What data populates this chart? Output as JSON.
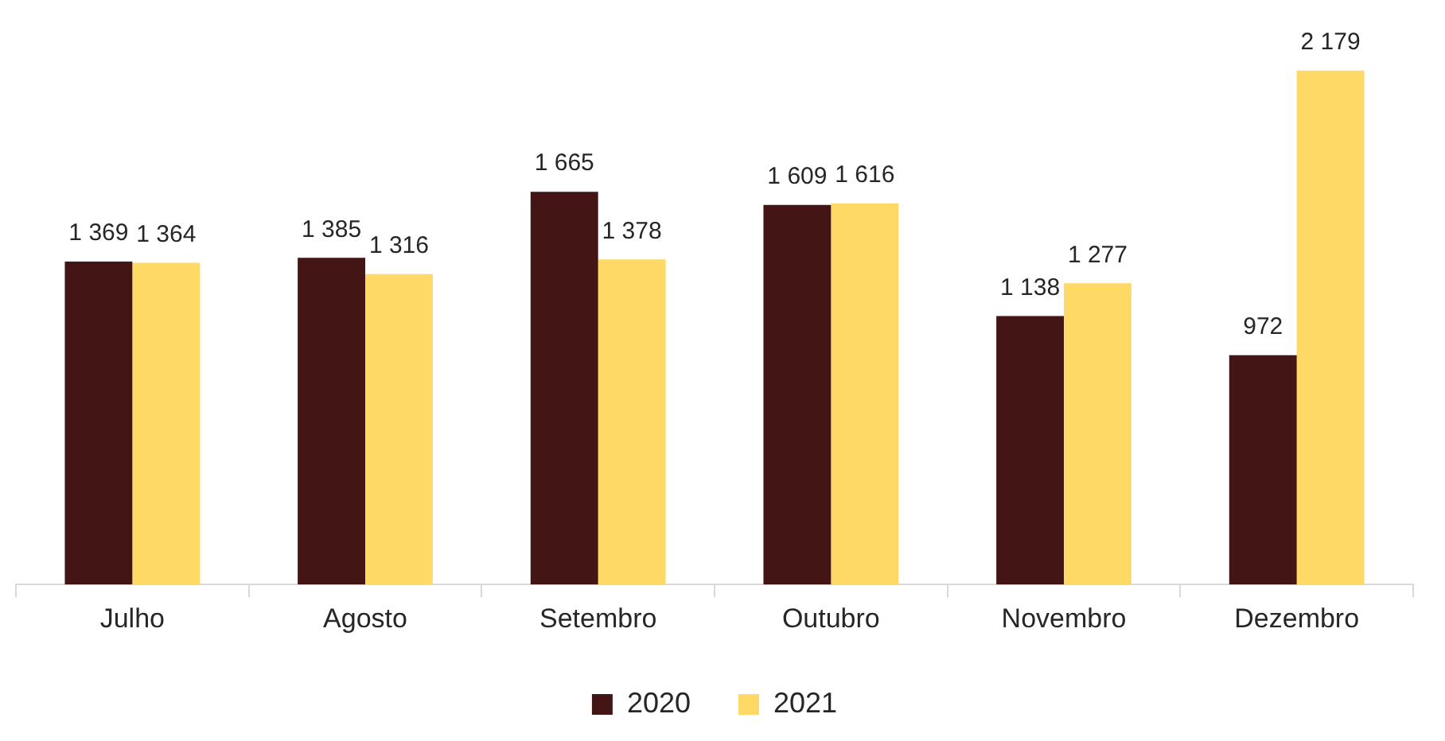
{
  "chart_data": {
    "type": "bar",
    "categories": [
      "Julho",
      "Agosto",
      "Setembro",
      "Outubro",
      "Novembro",
      "Dezembro"
    ],
    "series": [
      {
        "name": "2020",
        "color": "#431515",
        "values": [
          1369,
          1385,
          1665,
          1609,
          1138,
          972
        ],
        "value_labels": [
          "1 369",
          "1 385",
          "1 665",
          "1 609",
          "1 138",
          "972"
        ]
      },
      {
        "name": "2021",
        "color": "#ffd966",
        "values": [
          1364,
          1316,
          1378,
          1616,
          1277,
          2179
        ],
        "value_labels": [
          "1 364",
          "1 316",
          "1 378",
          "1 616",
          "1 277",
          "2 179"
        ]
      }
    ],
    "grid": false,
    "legend": "bottom"
  }
}
